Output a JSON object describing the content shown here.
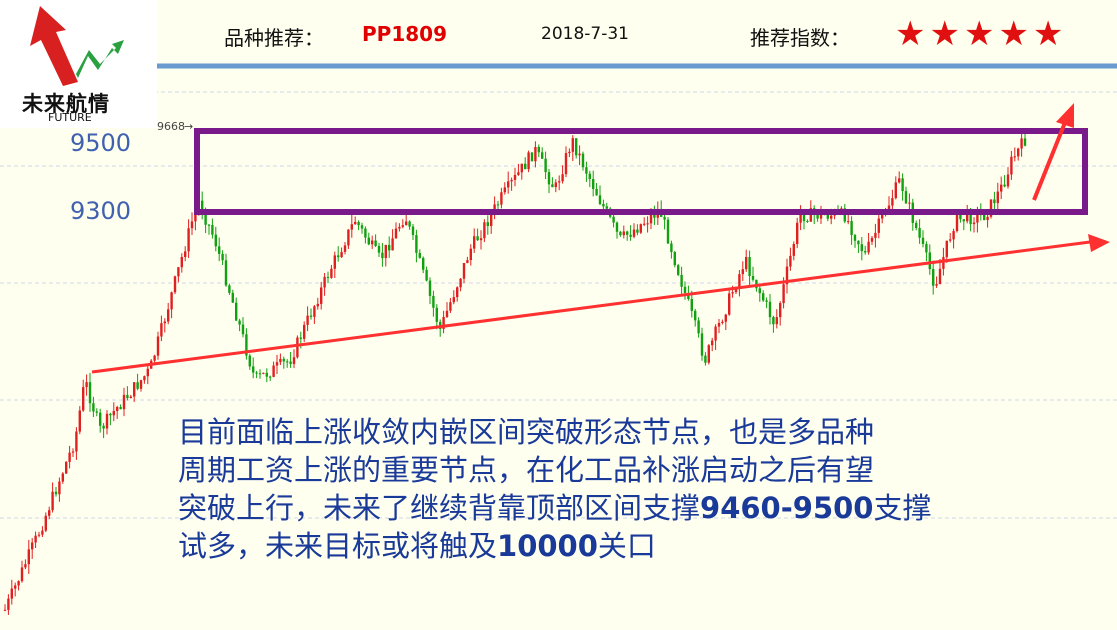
{
  "logo": {
    "name": "未来航情",
    "sub": "FUTURE"
  },
  "header": {
    "variety_label": "品种推荐：",
    "variety_value": "PP1809",
    "date": "2018-7-31",
    "index_label": "推荐指数：",
    "stars": "★★★★★"
  },
  "chart_data": {
    "type": "candlestick",
    "yticks": [
      9300,
      9500
    ],
    "high_marker": "9668",
    "ylim": [
      8700,
      9560
    ],
    "colors": {
      "up": "#e02020",
      "down": "#10a010",
      "box": "#7a1a8a",
      "trend": "#ff3030",
      "grid": "#cfd7e8"
    }
  },
  "commentary": {
    "line1": "目前面临上涨收敛内嵌区间突破形态节点，也是多品种",
    "line2": "周期工资上涨的重要节点，在化工品补涨启动之后有望",
    "line3a": "突破上行，未来了继续背靠顶部区间支撑",
    "line3b": "9460-9500",
    "line3c": "支撑",
    "line4a": "试多，未来目标或将触及",
    "line4b": "10000",
    "line4c": "关口"
  }
}
